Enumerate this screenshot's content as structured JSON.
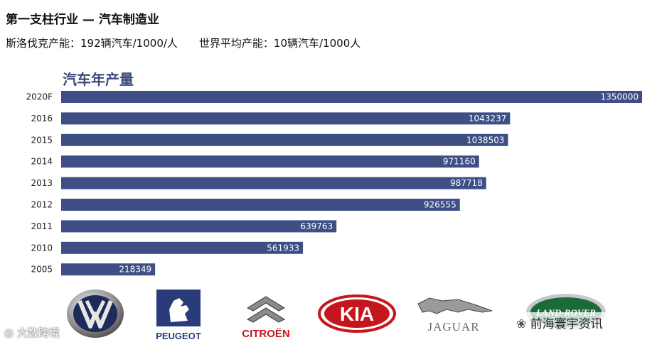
{
  "header": {
    "title": "第一支柱行业 — 汽车制造业",
    "stat_czech": "斯洛伐克产能：192辆汽车/1000/人",
    "stat_world": "世界平均产能：10辆汽车/1000人"
  },
  "chart_data": {
    "type": "bar",
    "orientation": "horizontal",
    "title": "汽车年产量",
    "categories": [
      "2020F",
      "2016",
      "2015",
      "2014",
      "2013",
      "2012",
      "2011",
      "2010",
      "2005"
    ],
    "values": [
      1350000,
      1043237,
      1038503,
      971160,
      987718,
      926555,
      639763,
      561933,
      218349
    ],
    "xlim": [
      0,
      1350000
    ],
    "grid": false,
    "legend": "none",
    "bar_color": "#3d4f85",
    "label_color": "#ffffff"
  },
  "logos": [
    {
      "name": "volkswagen",
      "text": "VW"
    },
    {
      "name": "peugeot",
      "text": "PEUGEOT"
    },
    {
      "name": "citroen",
      "text": "CITROËN"
    },
    {
      "name": "kia",
      "text": "KIA"
    },
    {
      "name": "jaguar",
      "text": "JAGUAR"
    },
    {
      "name": "land-rover",
      "text": "LAND-ROVER"
    }
  ],
  "watermarks": {
    "left": "大数跨境",
    "right": "前海寰宇资讯"
  }
}
